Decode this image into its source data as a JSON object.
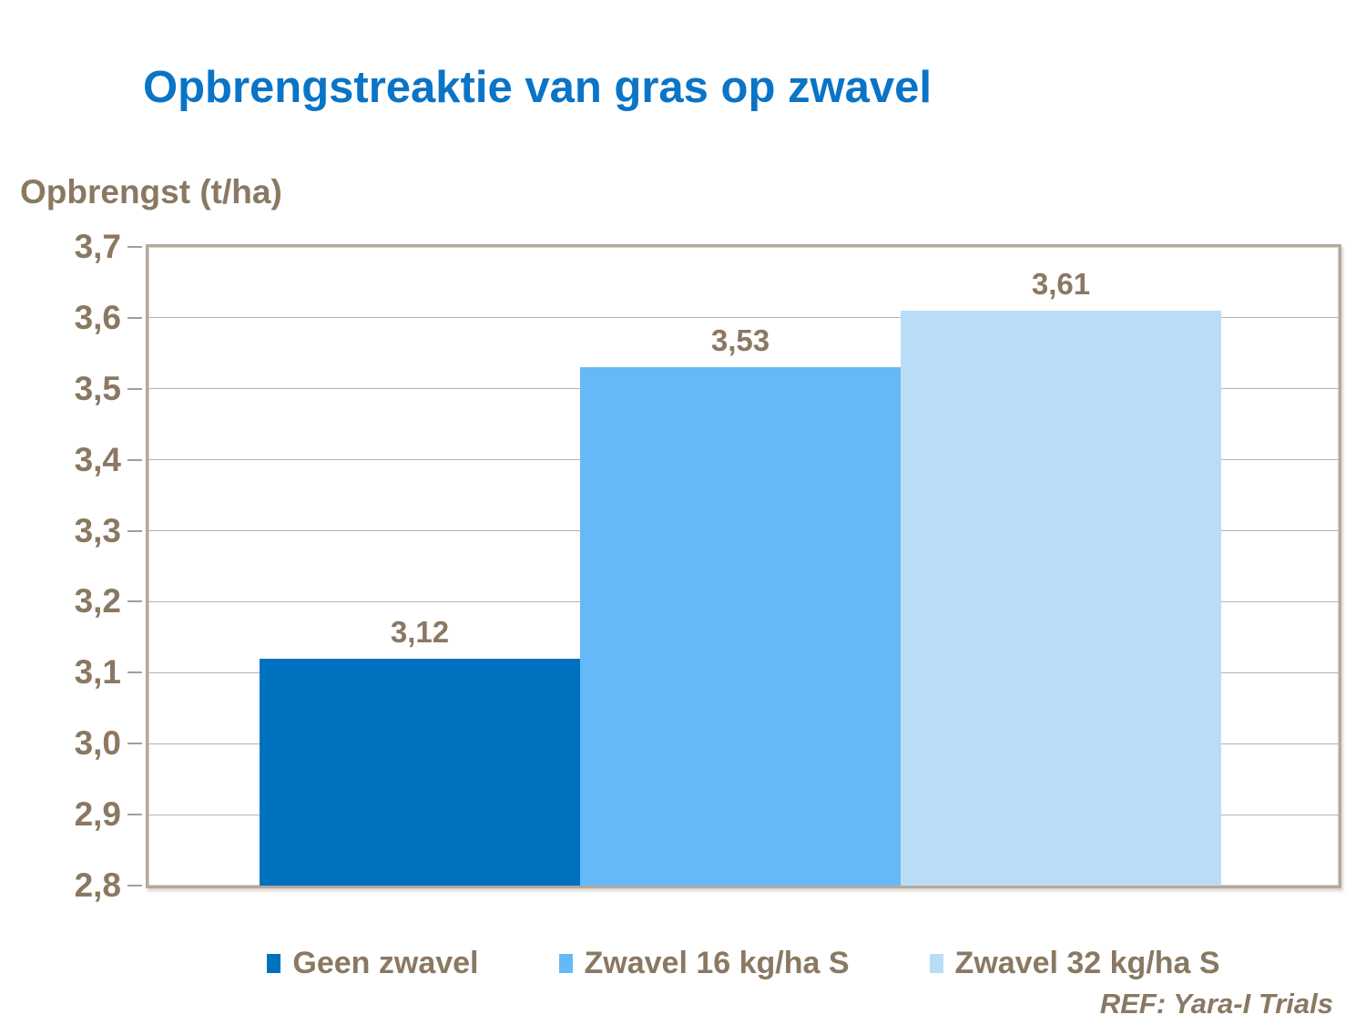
{
  "title": "Opbrengstreaktie van gras op zwavel",
  "axis_title": "Opbrengst (t/ha)",
  "footer": {
    "ref": "REF: Yara-I Trials"
  },
  "colors": {
    "title_blue": "#0a74c6",
    "text_brown": "#8a7862",
    "plot_border_tan": "#b5a99c",
    "gridline": "#bcb0a5",
    "tick": "#a89d92",
    "bar_dark_blue": "#0071be",
    "bar_medium_blue": "#66b9f7",
    "bar_light_blue": "#baddf7"
  },
  "chart_data": {
    "type": "bar",
    "title": "Opbrengstreaktie van gras op zwavel",
    "xlabel": "",
    "ylabel": "Opbrengst (t/ha)",
    "ylim": [
      2.8,
      3.7
    ],
    "ytick_step": 0.1,
    "ytick_labels": [
      "3,7",
      "3,6",
      "3,5",
      "3,4",
      "3,3",
      "3,2",
      "3,1",
      "3,0",
      "2,9",
      "2,8"
    ],
    "grid": true,
    "legend_position": "bottom",
    "categories": [
      "Geen zwavel",
      "Zwavel 16 kg/ha S",
      "Zwavel 32 kg/ha S"
    ],
    "series": [
      {
        "name": "Geen zwavel",
        "value": 3.12,
        "value_label": "3,12",
        "color": "#0071be"
      },
      {
        "name": "Zwavel 16 kg/ha S",
        "value": 3.53,
        "value_label": "3,53",
        "color": "#66b9f7"
      },
      {
        "name": "Zwavel 32 kg/ha S",
        "value": 3.61,
        "value_label": "3,61",
        "color": "#baddf7"
      }
    ]
  }
}
